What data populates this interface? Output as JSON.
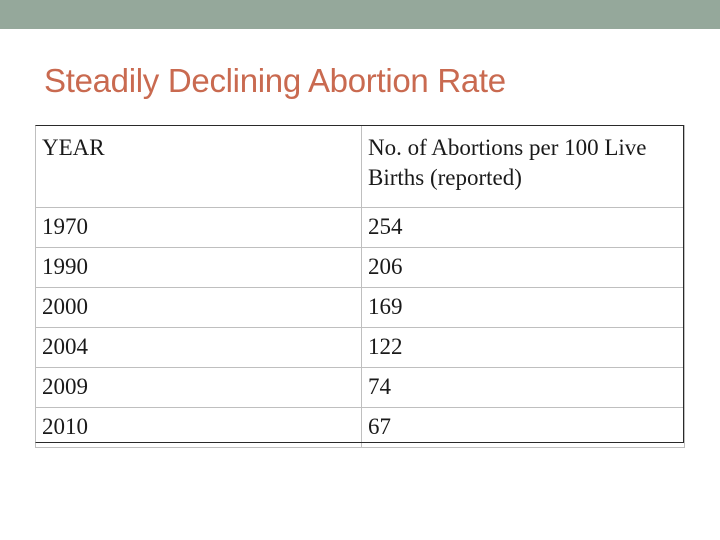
{
  "slide": {
    "title": "Steadily Declining Abortion Rate"
  },
  "table": {
    "headers": [
      "YEAR",
      "No. of Abortions per 100 Live Births (reported)"
    ],
    "rows": [
      [
        "1970",
        "254"
      ],
      [
        "1990",
        "206"
      ],
      [
        "2000",
        "169"
      ],
      [
        "2004",
        "122"
      ],
      [
        "2009",
        "74"
      ],
      [
        "2010",
        "67"
      ]
    ]
  },
  "colors": {
    "top_bar": "#95a89b",
    "title": "#c96a50"
  }
}
